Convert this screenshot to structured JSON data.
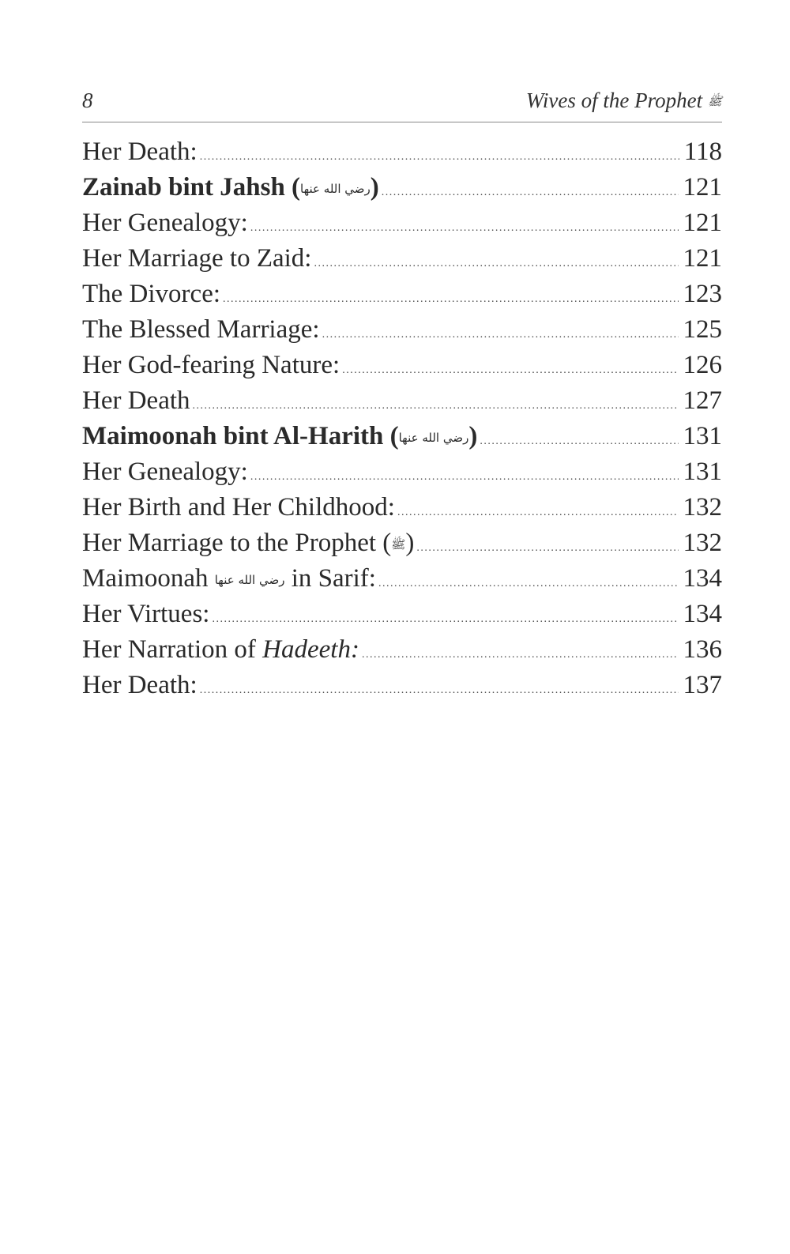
{
  "header": {
    "page_number": "8",
    "running_title": "Wives of the Prophet",
    "honorific": "ﷺ"
  },
  "toc": [
    {
      "parts": [
        {
          "text": "Her Death:"
        }
      ],
      "page": "118",
      "bold": false
    },
    {
      "parts": [
        {
          "text": "Zainab bint Jahsh ("
        },
        {
          "text": "رضي الله عنها",
          "hon": true
        },
        {
          "text": ")"
        }
      ],
      "page": "121",
      "bold": true
    },
    {
      "parts": [
        {
          "text": "Her Genealogy:"
        }
      ],
      "page": "121",
      "bold": false
    },
    {
      "parts": [
        {
          "text": "Her Marriage to Zaid:"
        }
      ],
      "page": "121",
      "bold": false
    },
    {
      "parts": [
        {
          "text": "The Divorce:"
        }
      ],
      "page": "123",
      "bold": false
    },
    {
      "parts": [
        {
          "text": "The Blessed Marriage:"
        }
      ],
      "page": "125",
      "bold": false
    },
    {
      "parts": [
        {
          "text": "Her God-fearing Nature:"
        }
      ],
      "page": "126",
      "bold": false
    },
    {
      "parts": [
        {
          "text": "Her Death"
        }
      ],
      "page": "127",
      "bold": false
    },
    {
      "parts": [
        {
          "text": "Maimoonah bint Al-Harith ("
        },
        {
          "text": "رضي الله عنها",
          "hon": true
        },
        {
          "text": ")"
        }
      ],
      "page": "131",
      "bold": true
    },
    {
      "parts": [
        {
          "text": "Her Genealogy:"
        }
      ],
      "page": "131",
      "bold": false
    },
    {
      "parts": [
        {
          "text": "Her Birth and Her Childhood:"
        }
      ],
      "page": "132",
      "bold": false
    },
    {
      "parts": [
        {
          "text": "Her Marriage to the Prophet ("
        },
        {
          "text": "ﷺ",
          "hon": true
        },
        {
          "text": ")"
        }
      ],
      "page": "132",
      "bold": false
    },
    {
      "parts": [
        {
          "text": "Maimoonah "
        },
        {
          "text": "رضي الله عنها",
          "hon": true
        },
        {
          "text": " in Sarif:"
        }
      ],
      "page": "134",
      "bold": false
    },
    {
      "parts": [
        {
          "text": "Her Virtues:"
        }
      ],
      "page": "134",
      "bold": false
    },
    {
      "parts": [
        {
          "text": "Her Narration of "
        },
        {
          "text": "Hadeeth:",
          "italic": true
        }
      ],
      "page": "136",
      "bold": false
    },
    {
      "parts": [
        {
          "text": "Her Death:"
        }
      ],
      "page": "137",
      "bold": false
    }
  ]
}
